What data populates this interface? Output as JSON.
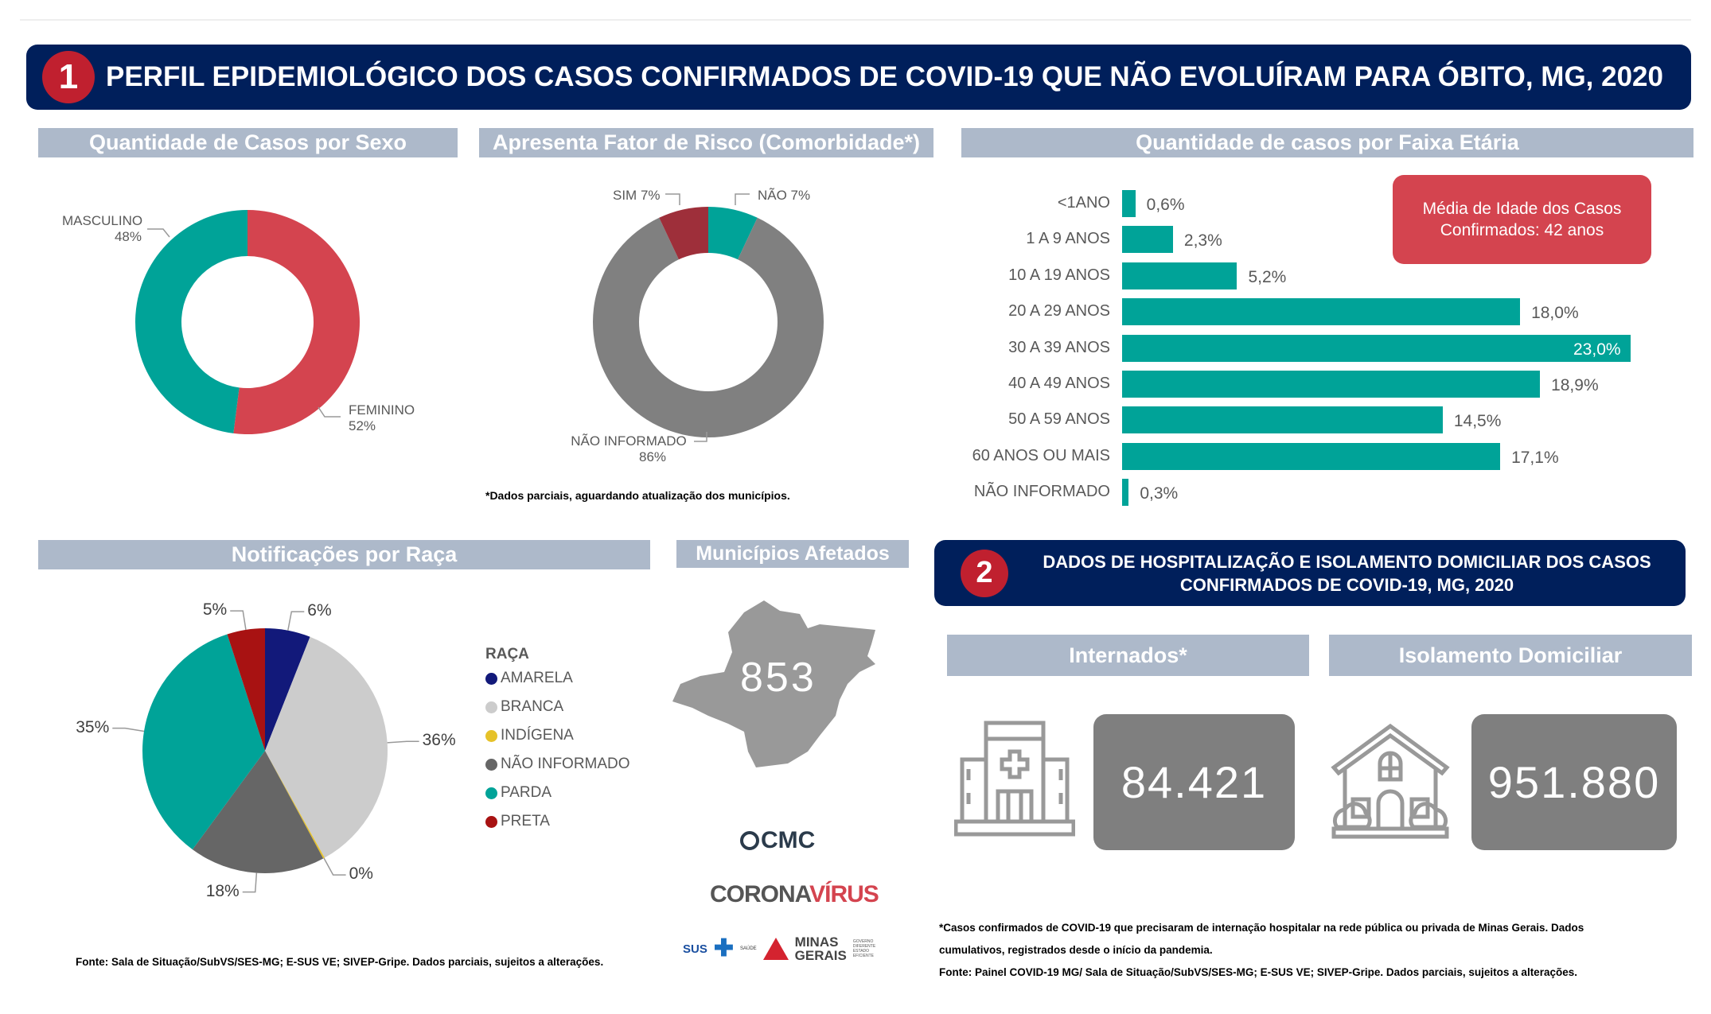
{
  "section1": {
    "number": "1",
    "title": "PERFIL EPIDEMIOLÓGICO DOS CASOS CONFIRMADOS DE COVID-19 QUE NÃO EVOLUÍRAM PARA ÓBITO, MG, 2020"
  },
  "section2": {
    "number": "2",
    "title_line1": "DADOS DE HOSPITALIZAÇÃO E ISOLAMENTO DOMICILIAR DOS CASOS",
    "title_line2": "CONFIRMADOS DE COVID-19, MG, 2020"
  },
  "colors": {
    "navy": "#001f5b",
    "red": "#c0202f",
    "teal": "#00a398",
    "header": "#adb9ca",
    "coral": "#d4444f",
    "gray": "#7f7f7f"
  },
  "chart_data": [
    {
      "type": "pie",
      "variant": "donut",
      "title": "Quantidade de Casos por Sexo",
      "slices": [
        {
          "label": "FEMININO",
          "value": 52,
          "display": "52%",
          "color": "#d4444f"
        },
        {
          "label": "MASCULINO",
          "value": 48,
          "display": "48%",
          "color": "#00a398"
        }
      ]
    },
    {
      "type": "pie",
      "variant": "donut",
      "title": "Apresenta Fator de Risco (Comorbidade*)",
      "slices": [
        {
          "label": "NÃO",
          "value": 7,
          "display": "NÃO 7%",
          "color": "#00a398"
        },
        {
          "label": "NÃO INFORMADO",
          "value": 86,
          "display": "86%",
          "color": "#808080"
        },
        {
          "label": "SIM",
          "value": 7,
          "display": "SIM 7%",
          "color": "#9e2f3a"
        }
      ],
      "footnote": "*Dados parciais, aguardando atualização dos municípios."
    },
    {
      "type": "bar",
      "orientation": "horizontal",
      "title": "Quantidade de casos por Faixa Etária",
      "categories": [
        "<1ANO",
        "1 A 9 ANOS",
        "10 A 19 ANOS",
        "20 A 29 ANOS",
        "30 A 39 ANOS",
        "40 A 49 ANOS",
        "50 A 59 ANOS",
        "60 ANOS OU MAIS",
        "NÃO INFORMADO"
      ],
      "values": [
        0.6,
        2.3,
        5.2,
        18.0,
        23.0,
        18.9,
        14.5,
        17.1,
        0.3
      ],
      "labels": [
        "0,6%",
        "2,3%",
        "5,2%",
        "18,0%",
        "23,0%",
        "18,9%",
        "14,5%",
        "17,1%",
        "0,3%"
      ],
      "xlim": [
        0,
        23
      ]
    },
    {
      "type": "pie",
      "title": "Notificações por Raça",
      "legend_title": "RAÇA",
      "legend_position": "right",
      "slices": [
        {
          "label": "AMARELA",
          "value": 6,
          "display": "6%",
          "color": "#12197a"
        },
        {
          "label": "BRANCA",
          "value": 36,
          "display": "36%",
          "color": "#cccccc"
        },
        {
          "label": "INDÍGENA",
          "value": 0.2,
          "display": "0%",
          "color": "#e6c229"
        },
        {
          "label": "NÃO INFORMADO",
          "value": 18,
          "display": "18%",
          "color": "#666666"
        },
        {
          "label": "PARDA",
          "value": 35,
          "display": "35%",
          "color": "#00a398"
        },
        {
          "label": "PRETA",
          "value": 5,
          "display": "5%",
          "color": "#a81212"
        }
      ]
    }
  ],
  "age_note": {
    "line1": "Média de Idade dos Casos",
    "line2": "Confirmados: 42 anos"
  },
  "sexo_labels": {
    "masc": "MASCULINO",
    "masc_pct": "48%",
    "fem": "FEMININO",
    "fem_pct": "52%"
  },
  "risco_labels": {
    "nao_inf": "NÃO INFORMADO",
    "nao_inf_pct": "86%"
  },
  "municipios": {
    "title": "Municípios Afetados",
    "value": "853"
  },
  "raca_source": "Fonte: Sala de Situação/SubVS/SES-MG; E-SUS VE; SIVEP-Gripe. Dados parciais, sujeitos a alterações.",
  "logos": {
    "cmc": "CMC",
    "corona": "CORONA",
    "virus": "VÍRUS",
    "sus": "SUS",
    "saude": "SAÚDE",
    "minas": "MINAS",
    "gerais": "GERAIS",
    "gov": "GOVERNO DIFERENTE ESTADO EFICIENTE"
  },
  "internados": {
    "title": "Internados*",
    "value": "84.421"
  },
  "isolamento": {
    "title": "Isolamento Domiciliar",
    "value": "951.880"
  },
  "footnotes": {
    "line1": "*Casos confirmados de COVID-19 que precisaram de internação hospitalar na rede pública ou privada de Minas Gerais. Dados",
    "line2": "cumulativos, registrados desde o início da pandemia.",
    "line3": "Fonte: Painel COVID-19 MG/ Sala de Situação/SubVS/SES-MG; E-SUS VE; SIVEP-Gripe. Dados parciais, sujeitos a alterações."
  }
}
